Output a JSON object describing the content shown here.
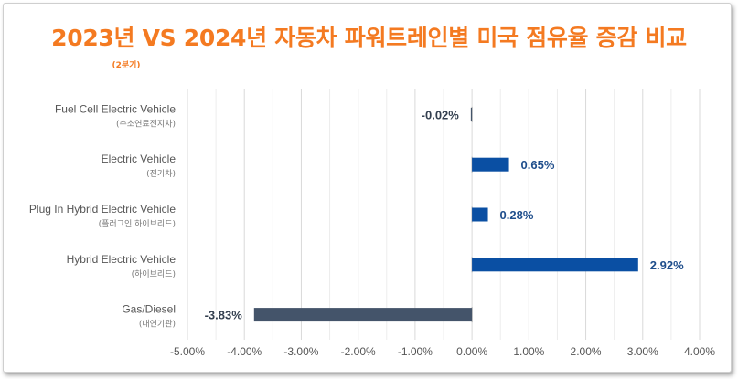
{
  "chart_data": {
    "type": "bar",
    "orientation": "horizontal",
    "title": "2023년 VS 2024년  자동차 파워트레인별 미국 점유율 증감 비교",
    "subtitle": "(2분기)",
    "categories": [
      {
        "name": "Fuel Cell Electric Vehicle",
        "sub": "(수소연료전지차)"
      },
      {
        "name": "Electric Vehicle",
        "sub": "(전기차)"
      },
      {
        "name": "Plug In Hybrid Electric Vehicle",
        "sub": "(플러그인 하이브리드)"
      },
      {
        "name": "Hybrid Electric Vehicle",
        "sub": "(하이브리드)"
      },
      {
        "name": "Gas/Diesel",
        "sub": "(내연기관)"
      }
    ],
    "values": [
      -0.02,
      0.65,
      0.28,
      2.92,
      -3.83
    ],
    "value_labels": [
      "-0.02%",
      "0.65%",
      "0.28%",
      "2.92%",
      "-3.83%"
    ],
    "xlim": [
      -5.0,
      4.0
    ],
    "x_ticks": [
      -5,
      -4,
      -3,
      -2,
      -1,
      0,
      1,
      2,
      3,
      4
    ],
    "x_tick_labels": [
      "-5.00%",
      "-4.00%",
      "-3.00%",
      "-2.00%",
      "-1.00%",
      "0.00%",
      "1.00%",
      "2.00%",
      "3.00%",
      "4.00%"
    ],
    "grid": true,
    "colors": {
      "positive": "#0a4fa3",
      "negative": "#44546a",
      "positive_label": "#1f4e8c",
      "negative_label": "#333f4f",
      "title": "#f47a21",
      "grid": "#d9d9d9"
    }
  }
}
